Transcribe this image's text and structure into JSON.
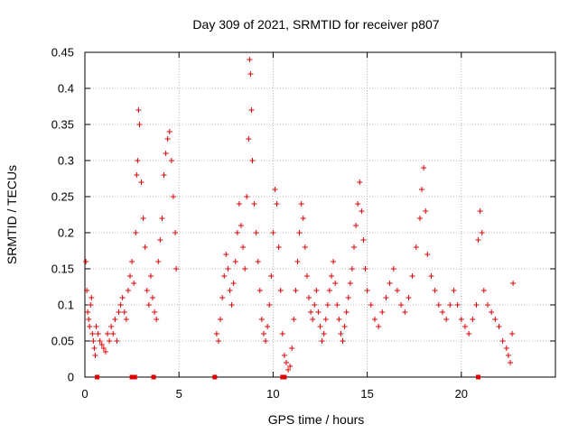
{
  "chart_data": {
    "type": "scatter",
    "title": "Day 309 of 2021, SRMTID for receiver p807",
    "xlabel": "GPS time / hours",
    "ylabel": "SRMTID / TECUs",
    "xlim": [
      0,
      25
    ],
    "ylim": [
      0,
      0.45
    ],
    "xticks": [
      0,
      5,
      10,
      15,
      20
    ],
    "yticks": [
      0,
      0.05,
      0.1,
      0.15,
      0.2,
      0.25,
      0.3,
      0.35,
      0.4,
      0.45
    ],
    "xtick_labels": [
      "0",
      "5",
      "10",
      "15",
      "20"
    ],
    "ytick_labels": [
      "0",
      "0.05",
      "0.1",
      "0.15",
      "0.2",
      "0.25",
      "0.3",
      "0.35",
      "0.4",
      "0.45"
    ],
    "grid": true,
    "marker": "+",
    "color": "#e00000",
    "series": [
      {
        "name": "SRMTID",
        "points": [
          [
            0.05,
            0.16
          ],
          [
            0.1,
            0.12
          ],
          [
            0.15,
            0.09
          ],
          [
            0.2,
            0.08
          ],
          [
            0.25,
            0.07
          ],
          [
            0.3,
            0.1
          ],
          [
            0.35,
            0.11
          ],
          [
            0.4,
            0.06
          ],
          [
            0.45,
            0.05
          ],
          [
            0.5,
            0.04
          ],
          [
            0.55,
            0.03
          ],
          [
            0.6,
            0.07
          ],
          [
            0.7,
            0.06
          ],
          [
            0.8,
            0.05
          ],
          [
            0.9,
            0.045
          ],
          [
            1.0,
            0.04
          ],
          [
            1.1,
            0.035
          ],
          [
            1.2,
            0.06
          ],
          [
            1.3,
            0.05
          ],
          [
            1.4,
            0.07
          ],
          [
            1.5,
            0.06
          ],
          [
            1.6,
            0.08
          ],
          [
            1.7,
            0.05
          ],
          [
            1.8,
            0.09
          ],
          [
            1.9,
            0.1
          ],
          [
            2.0,
            0.11
          ],
          [
            2.1,
            0.09
          ],
          [
            2.2,
            0.08
          ],
          [
            2.3,
            0.12
          ],
          [
            2.4,
            0.14
          ],
          [
            2.5,
            0.16
          ],
          [
            2.6,
            0.13
          ],
          [
            2.7,
            0.2
          ],
          [
            2.75,
            0.28
          ],
          [
            2.8,
            0.3
          ],
          [
            2.85,
            0.37
          ],
          [
            2.9,
            0.35
          ],
          [
            3.0,
            0.27
          ],
          [
            3.1,
            0.22
          ],
          [
            3.2,
            0.18
          ],
          [
            3.3,
            0.12
          ],
          [
            3.4,
            0.1
          ],
          [
            3.5,
            0.14
          ],
          [
            3.6,
            0.11
          ],
          [
            3.7,
            0.09
          ],
          [
            3.8,
            0.08
          ],
          [
            3.9,
            0.16
          ],
          [
            4.0,
            0.19
          ],
          [
            4.1,
            0.22
          ],
          [
            4.2,
            0.28
          ],
          [
            4.3,
            0.31
          ],
          [
            4.4,
            0.33
          ],
          [
            4.5,
            0.34
          ],
          [
            4.6,
            0.3
          ],
          [
            4.7,
            0.25
          ],
          [
            4.8,
            0.2
          ],
          [
            4.85,
            0.15
          ],
          [
            7.0,
            0.06
          ],
          [
            7.1,
            0.05
          ],
          [
            7.2,
            0.08
          ],
          [
            7.3,
            0.11
          ],
          [
            7.4,
            0.14
          ],
          [
            7.5,
            0.17
          ],
          [
            7.6,
            0.15
          ],
          [
            7.7,
            0.12
          ],
          [
            7.8,
            0.1
          ],
          [
            7.9,
            0.13
          ],
          [
            8.0,
            0.16
          ],
          [
            8.1,
            0.2
          ],
          [
            8.2,
            0.24
          ],
          [
            8.3,
            0.21
          ],
          [
            8.4,
            0.18
          ],
          [
            8.5,
            0.15
          ],
          [
            8.6,
            0.25
          ],
          [
            8.7,
            0.33
          ],
          [
            8.75,
            0.44
          ],
          [
            8.8,
            0.42
          ],
          [
            8.85,
            0.37
          ],
          [
            8.9,
            0.3
          ],
          [
            9.0,
            0.24
          ],
          [
            9.1,
            0.2
          ],
          [
            9.2,
            0.16
          ],
          [
            9.3,
            0.12
          ],
          [
            9.4,
            0.08
          ],
          [
            9.5,
            0.06
          ],
          [
            9.6,
            0.05
          ],
          [
            9.7,
            0.07
          ],
          [
            9.8,
            0.1
          ],
          [
            9.9,
            0.14
          ],
          [
            10.0,
            0.2
          ],
          [
            10.1,
            0.26
          ],
          [
            10.2,
            0.24
          ],
          [
            10.3,
            0.18
          ],
          [
            10.4,
            0.12
          ],
          [
            10.5,
            0.06
          ],
          [
            10.6,
            0.03
          ],
          [
            10.7,
            0.02
          ],
          [
            10.8,
            0.01
          ],
          [
            10.9,
            0.015
          ],
          [
            11.0,
            0.04
          ],
          [
            11.1,
            0.08
          ],
          [
            11.2,
            0.12
          ],
          [
            11.3,
            0.16
          ],
          [
            11.4,
            0.2
          ],
          [
            11.5,
            0.24
          ],
          [
            11.6,
            0.22
          ],
          [
            11.7,
            0.18
          ],
          [
            11.8,
            0.14
          ],
          [
            11.9,
            0.11
          ],
          [
            12.0,
            0.09
          ],
          [
            12.1,
            0.08
          ],
          [
            12.2,
            0.1
          ],
          [
            12.3,
            0.12
          ],
          [
            12.4,
            0.09
          ],
          [
            12.5,
            0.07
          ],
          [
            12.6,
            0.05
          ],
          [
            12.7,
            0.06
          ],
          [
            12.8,
            0.08
          ],
          [
            12.9,
            0.1
          ],
          [
            13.0,
            0.12
          ],
          [
            13.1,
            0.14
          ],
          [
            13.2,
            0.16
          ],
          [
            13.3,
            0.13
          ],
          [
            13.4,
            0.1
          ],
          [
            13.5,
            0.08
          ],
          [
            13.6,
            0.06
          ],
          [
            13.7,
            0.05
          ],
          [
            13.8,
            0.07
          ],
          [
            13.9,
            0.09
          ],
          [
            14.0,
            0.11
          ],
          [
            14.1,
            0.13
          ],
          [
            14.2,
            0.15
          ],
          [
            14.3,
            0.18
          ],
          [
            14.4,
            0.21
          ],
          [
            14.5,
            0.24
          ],
          [
            14.6,
            0.27
          ],
          [
            14.7,
            0.23
          ],
          [
            14.8,
            0.19
          ],
          [
            14.9,
            0.15
          ],
          [
            15.0,
            0.12
          ],
          [
            15.2,
            0.1
          ],
          [
            15.4,
            0.08
          ],
          [
            15.6,
            0.07
          ],
          [
            15.8,
            0.09
          ],
          [
            16.0,
            0.11
          ],
          [
            16.2,
            0.13
          ],
          [
            16.4,
            0.15
          ],
          [
            16.6,
            0.12
          ],
          [
            16.8,
            0.1
          ],
          [
            17.0,
            0.09
          ],
          [
            17.2,
            0.11
          ],
          [
            17.4,
            0.14
          ],
          [
            17.6,
            0.18
          ],
          [
            17.8,
            0.22
          ],
          [
            17.9,
            0.26
          ],
          [
            18.0,
            0.29
          ],
          [
            18.1,
            0.23
          ],
          [
            18.2,
            0.17
          ],
          [
            18.4,
            0.14
          ],
          [
            18.6,
            0.12
          ],
          [
            18.8,
            0.1
          ],
          [
            19.0,
            0.09
          ],
          [
            19.2,
            0.08
          ],
          [
            19.4,
            0.1
          ],
          [
            19.6,
            0.12
          ],
          [
            19.8,
            0.1
          ],
          [
            20.0,
            0.08
          ],
          [
            20.2,
            0.07
          ],
          [
            20.4,
            0.06
          ],
          [
            20.6,
            0.08
          ],
          [
            20.8,
            0.1
          ],
          [
            20.9,
            0.19
          ],
          [
            21.0,
            0.23
          ],
          [
            21.1,
            0.2
          ],
          [
            21.2,
            0.12
          ],
          [
            21.4,
            0.1
          ],
          [
            21.6,
            0.09
          ],
          [
            21.8,
            0.08
          ],
          [
            22.0,
            0.07
          ],
          [
            22.2,
            0.05
          ],
          [
            22.4,
            0.04
          ],
          [
            22.5,
            0.03
          ],
          [
            22.6,
            0.02
          ],
          [
            22.7,
            0.06
          ],
          [
            22.75,
            0.13
          ]
        ]
      }
    ],
    "gap_markers_x": [
      0.65,
      2.5,
      2.65,
      3.65,
      6.9,
      10.5,
      10.6,
      20.9
    ]
  }
}
